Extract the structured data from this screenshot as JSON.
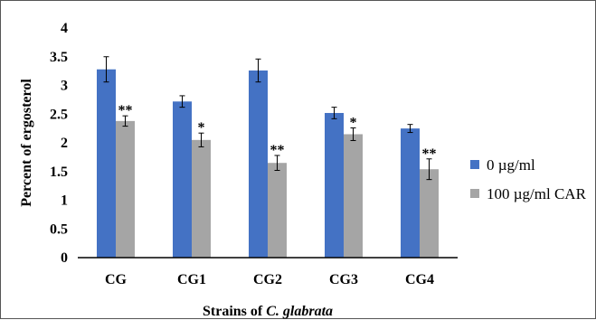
{
  "chart_data": {
    "type": "bar",
    "categories": [
      "CG",
      "CG1",
      "CG2",
      "CG3",
      "CG4"
    ],
    "series": [
      {
        "name": "0 µg/ml",
        "color": "#4472C4",
        "values": [
          3.28,
          2.72,
          3.26,
          2.52,
          2.25
        ],
        "errors": [
          0.22,
          0.1,
          0.2,
          0.1,
          0.07
        ],
        "significance": [
          "",
          "",
          "",
          "",
          ""
        ]
      },
      {
        "name": "100 µg/ml CAR",
        "color": "#A5A5A5",
        "values": [
          2.38,
          2.05,
          1.65,
          2.15,
          1.54
        ],
        "errors": [
          0.09,
          0.12,
          0.13,
          0.11,
          0.18
        ],
        "significance": [
          "**",
          "*",
          "**",
          "*",
          "**"
        ]
      }
    ],
    "ylim": [
      0,
      4
    ],
    "yticks": [
      "0",
      "0.5",
      "1",
      "1.5",
      "2",
      "2.5",
      "3",
      "3.5",
      "4"
    ],
    "ylabel": "Percent of ergosterol",
    "xlabel_prefix": "Strains of ",
    "xlabel_italic": "C. glabrata",
    "grid": false,
    "legend_position": "right"
  }
}
